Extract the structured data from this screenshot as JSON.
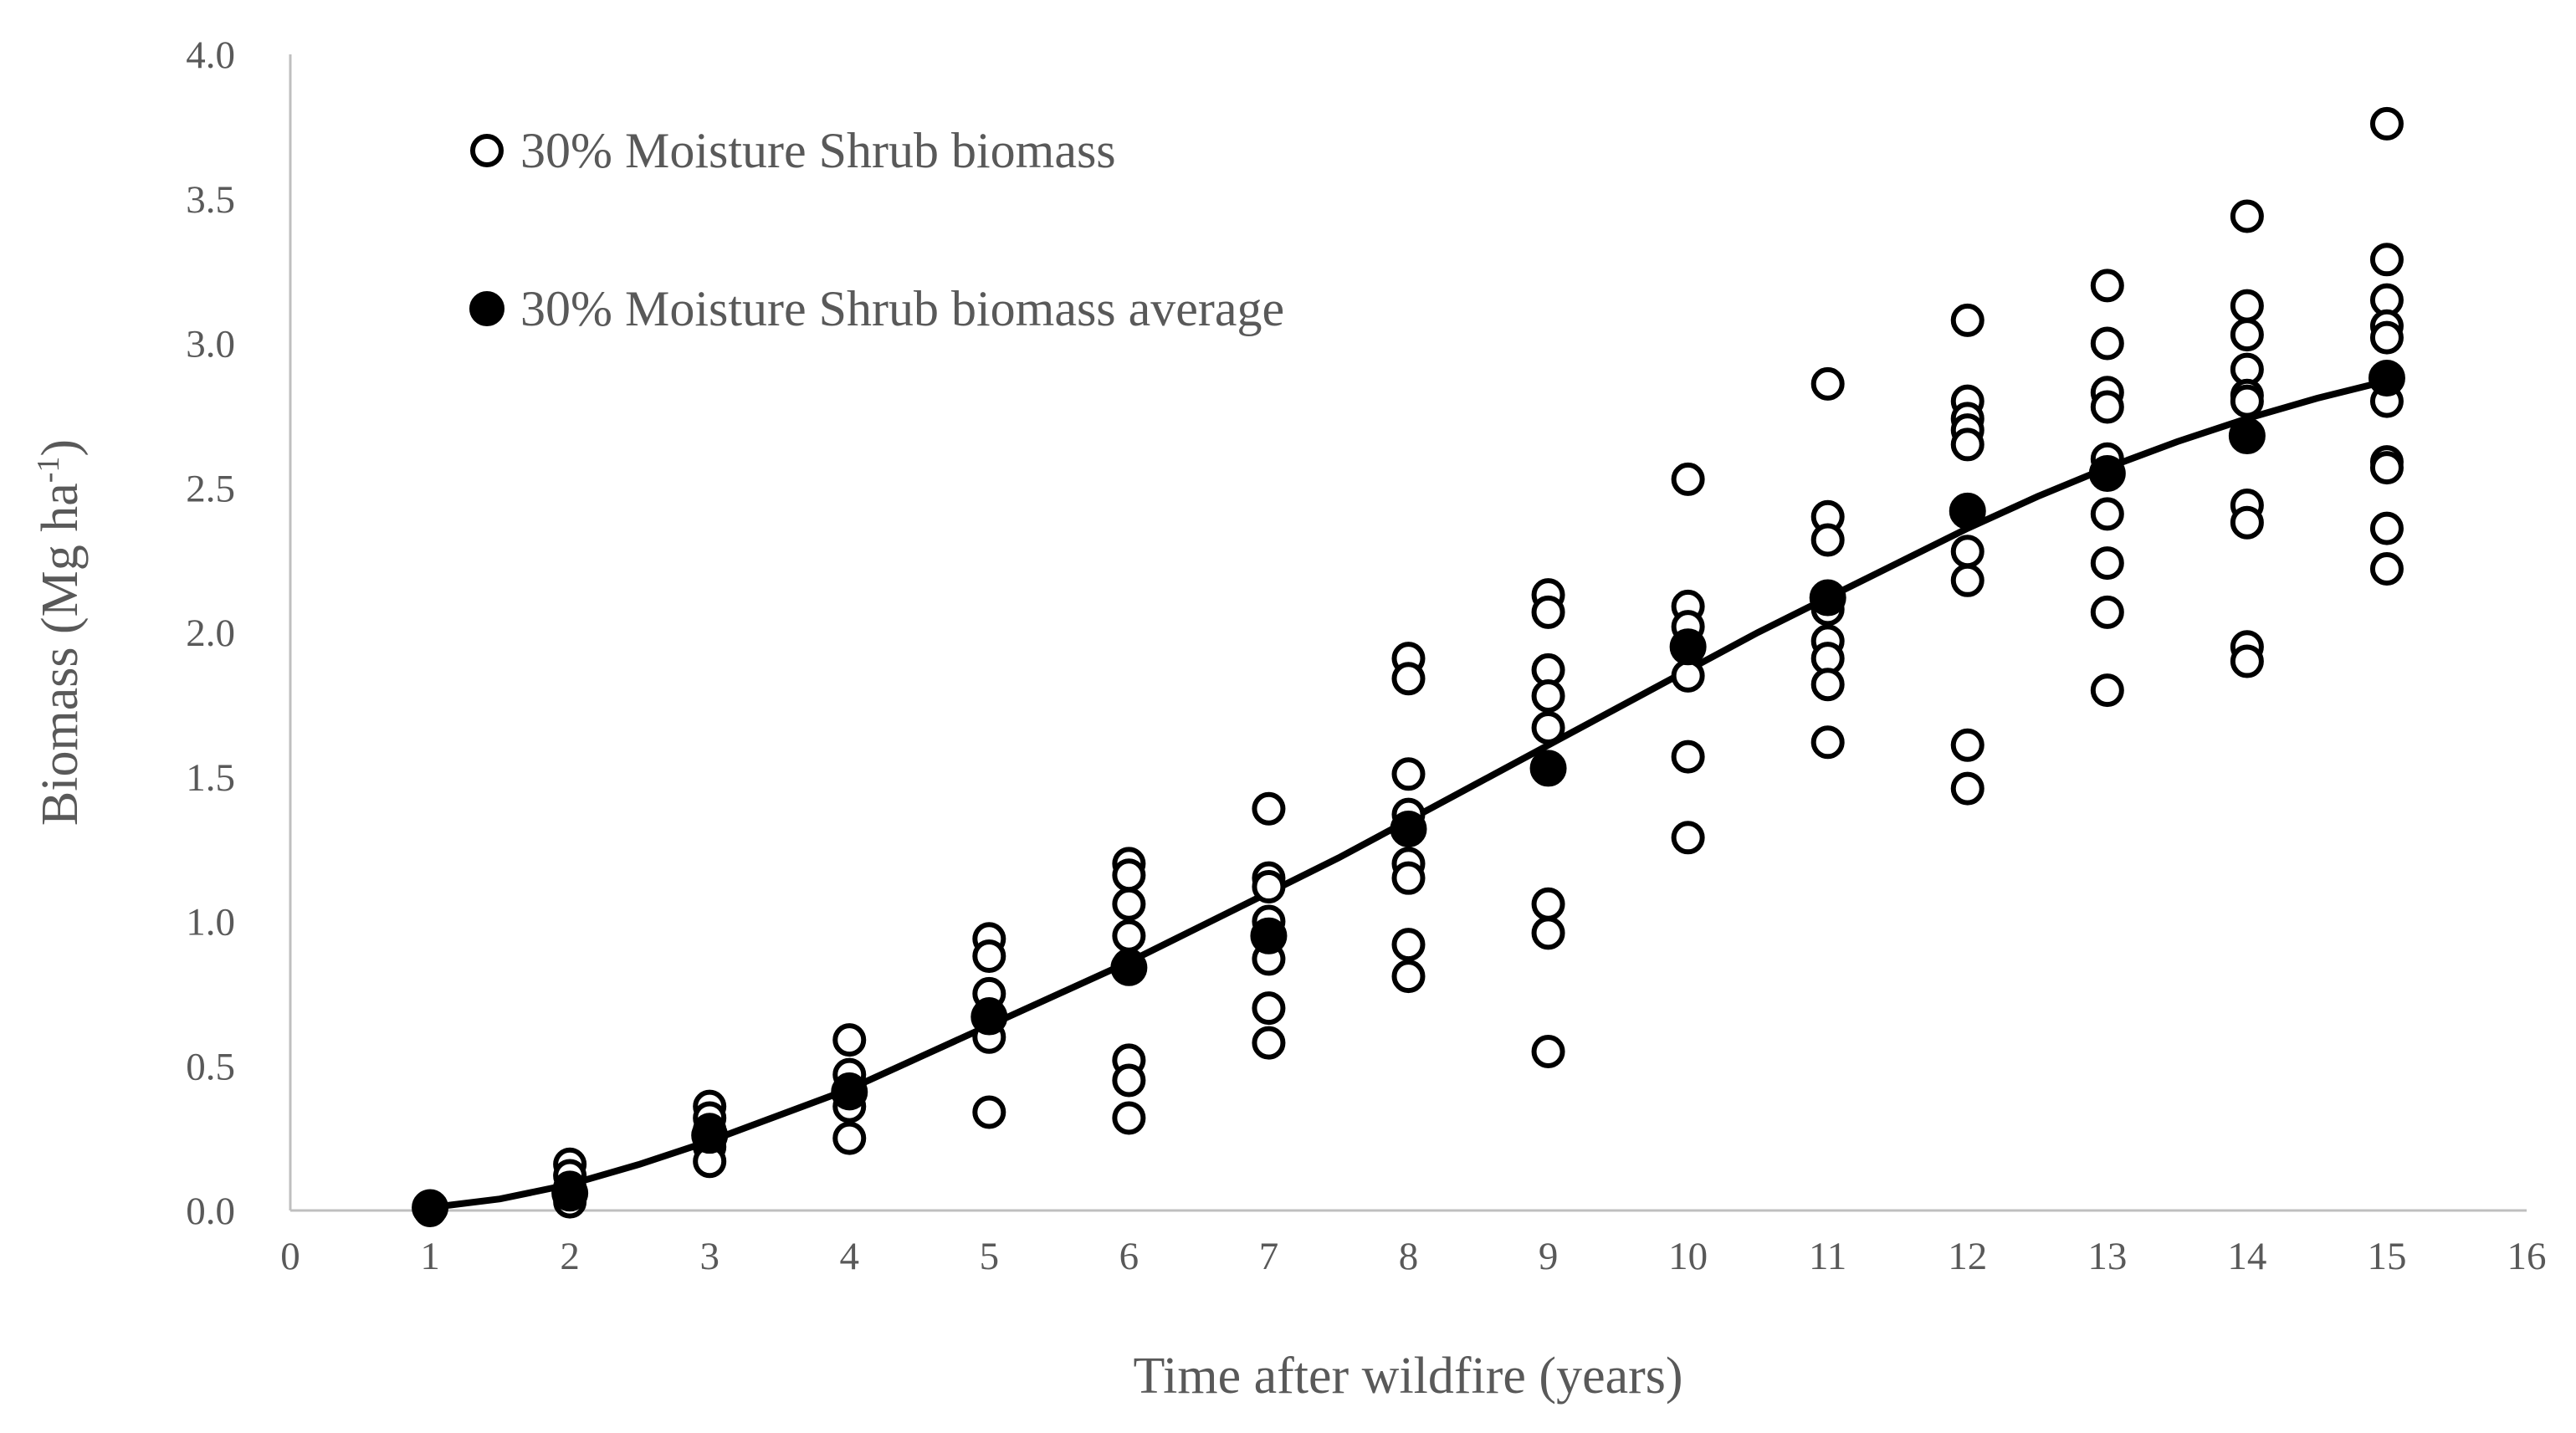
{
  "chart_data": {
    "type": "scatter",
    "xlabel": "Time after wildfire (years)",
    "ylabel": "Biomass (Mg ha",
    "ylabel_sup": "-1",
    "ylabel_close": ")",
    "xlim": [
      0,
      16
    ],
    "ylim": [
      0,
      4
    ],
    "x_ticks": [
      "0",
      "1",
      "2",
      "3",
      "4",
      "5",
      "6",
      "7",
      "8",
      "9",
      "10",
      "11",
      "12",
      "13",
      "14",
      "15",
      "16"
    ],
    "y_ticks": [
      "0.0",
      "0.5",
      "1.0",
      "1.5",
      "2.0",
      "2.5",
      "3.0",
      "3.5",
      "4.0"
    ],
    "legend_position": "top-left",
    "colors": {
      "axis": "#bfbfbf",
      "text": "#595959",
      "marker": "#000000"
    },
    "series": [
      {
        "name": "30% Moisture Shrub biomass",
        "marker": "open-circle",
        "points": [
          [
            1,
            0.01
          ],
          [
            1,
            0.0
          ],
          [
            2,
            0.16
          ],
          [
            2,
            0.12
          ],
          [
            2,
            0.08
          ],
          [
            2,
            0.05
          ],
          [
            2,
            0.03
          ],
          [
            3,
            0.36
          ],
          [
            3,
            0.32
          ],
          [
            3,
            0.28
          ],
          [
            3,
            0.22
          ],
          [
            3,
            0.17
          ],
          [
            4,
            0.59
          ],
          [
            4,
            0.47
          ],
          [
            4,
            0.42
          ],
          [
            4,
            0.36
          ],
          [
            4,
            0.25
          ],
          [
            5,
            0.94
          ],
          [
            5,
            0.88
          ],
          [
            5,
            0.75
          ],
          [
            5,
            0.68
          ],
          [
            5,
            0.6
          ],
          [
            5,
            0.34
          ],
          [
            6,
            1.2
          ],
          [
            6,
            1.16
          ],
          [
            6,
            1.06
          ],
          [
            6,
            0.95
          ],
          [
            6,
            0.85
          ],
          [
            6,
            0.52
          ],
          [
            6,
            0.45
          ],
          [
            6,
            0.32
          ],
          [
            7,
            1.39
          ],
          [
            7,
            1.15
          ],
          [
            7,
            1.12
          ],
          [
            7,
            1.0
          ],
          [
            7,
            0.95
          ],
          [
            7,
            0.87
          ],
          [
            7,
            0.7
          ],
          [
            7,
            0.58
          ],
          [
            8,
            1.91
          ],
          [
            8,
            1.84
          ],
          [
            8,
            1.51
          ],
          [
            8,
            1.37
          ],
          [
            8,
            1.2
          ],
          [
            8,
            1.15
          ],
          [
            8,
            0.92
          ],
          [
            8,
            0.81
          ],
          [
            9,
            2.13
          ],
          [
            9,
            2.07
          ],
          [
            9,
            1.87
          ],
          [
            9,
            1.78
          ],
          [
            9,
            1.67
          ],
          [
            9,
            1.06
          ],
          [
            9,
            0.96
          ],
          [
            9,
            0.55
          ],
          [
            10,
            2.53
          ],
          [
            10,
            2.09
          ],
          [
            10,
            2.02
          ],
          [
            10,
            1.95
          ],
          [
            10,
            1.85
          ],
          [
            10,
            1.57
          ],
          [
            10,
            1.29
          ],
          [
            11,
            2.86
          ],
          [
            11,
            2.4
          ],
          [
            11,
            2.32
          ],
          [
            11,
            2.08
          ],
          [
            11,
            1.97
          ],
          [
            11,
            1.91
          ],
          [
            11,
            1.82
          ],
          [
            11,
            1.62
          ],
          [
            12,
            3.08
          ],
          [
            12,
            2.8
          ],
          [
            12,
            2.74
          ],
          [
            12,
            2.7
          ],
          [
            12,
            2.65
          ],
          [
            12,
            2.28
          ],
          [
            12,
            2.18
          ],
          [
            12,
            1.61
          ],
          [
            12,
            1.46
          ],
          [
            13,
            3.2
          ],
          [
            13,
            3.0
          ],
          [
            13,
            2.83
          ],
          [
            13,
            2.78
          ],
          [
            13,
            2.6
          ],
          [
            13,
            2.41
          ],
          [
            13,
            2.24
          ],
          [
            13,
            2.07
          ],
          [
            13,
            1.8
          ],
          [
            14,
            3.44
          ],
          [
            14,
            3.13
          ],
          [
            14,
            3.03
          ],
          [
            14,
            2.91
          ],
          [
            14,
            2.82
          ],
          [
            14,
            2.8
          ],
          [
            14,
            2.44
          ],
          [
            14,
            2.38
          ],
          [
            14,
            1.95
          ],
          [
            14,
            1.9
          ],
          [
            15,
            3.76
          ],
          [
            15,
            3.29
          ],
          [
            15,
            3.15
          ],
          [
            15,
            3.06
          ],
          [
            15,
            3.02
          ],
          [
            15,
            2.8
          ],
          [
            15,
            2.59
          ],
          [
            15,
            2.57
          ],
          [
            15,
            2.36
          ],
          [
            15,
            2.22
          ]
        ]
      },
      {
        "name": "30% Moisture Shrub biomass average",
        "marker": "filled-circle",
        "points": [
          [
            1,
            0.01
          ],
          [
            2,
            0.06
          ],
          [
            3,
            0.26
          ],
          [
            4,
            0.41
          ],
          [
            5,
            0.67
          ],
          [
            6,
            0.84
          ],
          [
            7,
            0.95
          ],
          [
            8,
            1.32
          ],
          [
            9,
            1.53
          ],
          [
            10,
            1.95
          ],
          [
            11,
            2.12
          ],
          [
            12,
            2.42
          ],
          [
            13,
            2.55
          ],
          [
            14,
            2.68
          ],
          [
            15,
            2.88
          ]
        ]
      }
    ],
    "fit_line": {
      "type": "sigmoid-trend",
      "points": [
        [
          1,
          0.01
        ],
        [
          1.5,
          0.04
        ],
        [
          2,
          0.09
        ],
        [
          2.5,
          0.16
        ],
        [
          3,
          0.24
        ],
        [
          3.5,
          0.33
        ],
        [
          4,
          0.42
        ],
        [
          4.5,
          0.53
        ],
        [
          5,
          0.64
        ],
        [
          5.5,
          0.75
        ],
        [
          6,
          0.86
        ],
        [
          6.5,
          0.98
        ],
        [
          7,
          1.1
        ],
        [
          7.5,
          1.22
        ],
        [
          8,
          1.35
        ],
        [
          8.5,
          1.48
        ],
        [
          9,
          1.61
        ],
        [
          9.5,
          1.74
        ],
        [
          10,
          1.87
        ],
        [
          10.5,
          2.0
        ],
        [
          11,
          2.12
        ],
        [
          11.5,
          2.24
        ],
        [
          12,
          2.36
        ],
        [
          12.5,
          2.47
        ],
        [
          13,
          2.57
        ],
        [
          13.5,
          2.66
        ],
        [
          14,
          2.74
        ],
        [
          14.5,
          2.81
        ],
        [
          15,
          2.87
        ]
      ]
    }
  }
}
